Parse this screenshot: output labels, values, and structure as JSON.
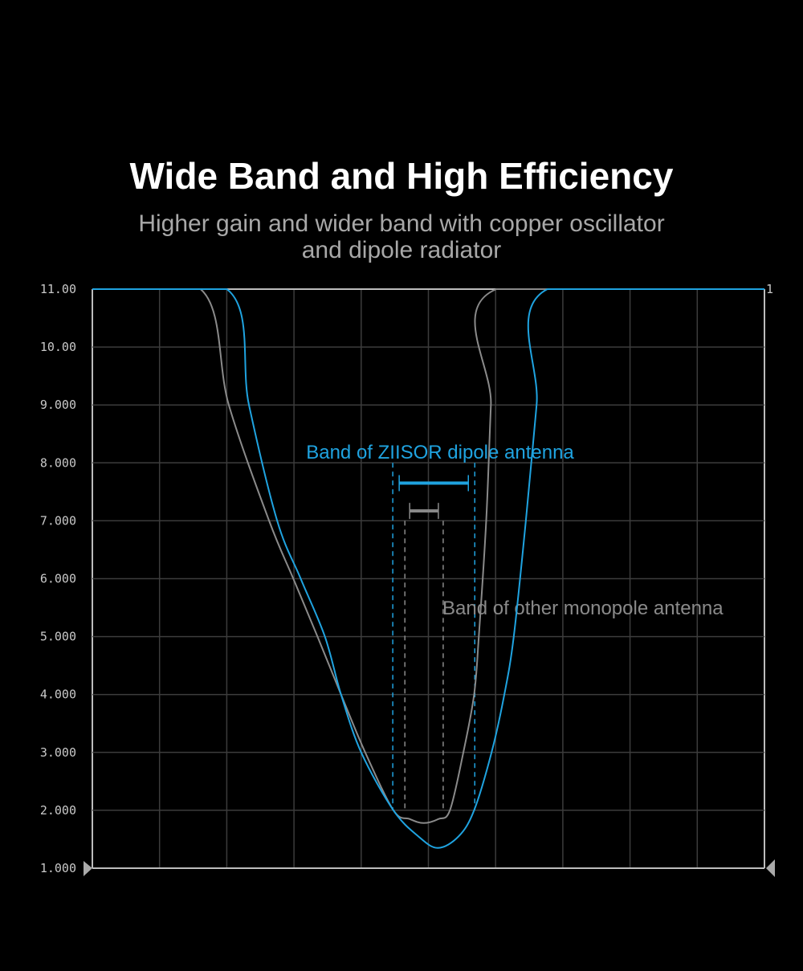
{
  "header": {
    "title": "Wide Band and High Efficiency",
    "subtitle_line1": "Higher gain and wider band with copper oscillator",
    "subtitle_line2": "and dipole radiator"
  },
  "chart_data": {
    "type": "line",
    "title": "",
    "xlabel": "",
    "ylabel": "",
    "ylim": [
      1,
      11
    ],
    "xlim": [
      0,
      10
    ],
    "x_gridlines": 10,
    "y_tick_labels": [
      "11.00",
      "10.00",
      "9.000",
      "8.000",
      "7.000",
      "6.000",
      "5.000",
      "4.000",
      "3.000",
      "2.000",
      "1.000"
    ],
    "corner_label": "1",
    "grid": true,
    "colors": {
      "dipole": "#1fa3e0",
      "monopole": "#8a8a8a",
      "grid": "#3c3c3c",
      "axis": "#bdbdbd"
    },
    "series": [
      {
        "key": "dipole",
        "color": "#1fa3e0",
        "x": [
          0,
          2.0,
          2.33,
          2.75,
          3.1,
          3.46,
          3.7,
          4.0,
          4.48,
          4.85,
          5.14,
          5.45,
          5.68,
          5.94,
          6.13,
          6.27,
          6.45,
          6.61,
          6.77,
          10
        ],
        "y": [
          11,
          11,
          9.0,
          7.0,
          6.0,
          5.0,
          4.0,
          3.0,
          2.0,
          1.55,
          1.35,
          1.55,
          2.0,
          3.0,
          4.0,
          5.0,
          7.0,
          9.0,
          11,
          11
        ]
      },
      {
        "key": "monopole",
        "color": "#8a8a8a",
        "x": [
          0,
          1.61,
          2.03,
          2.63,
          2.99,
          3.35,
          3.7,
          4.06,
          4.48,
          4.72,
          4.93,
          5.15,
          5.32,
          5.52,
          5.68,
          5.75,
          5.86,
          5.93,
          6.01,
          10
        ],
        "y": [
          11,
          11,
          9.0,
          7.0,
          6.0,
          5.0,
          4.0,
          3.0,
          2.0,
          1.85,
          1.78,
          1.85,
          2.0,
          3.0,
          4.0,
          5.0,
          7.0,
          9.0,
          11,
          11
        ]
      }
    ],
    "annotations": [
      {
        "key": "dipole",
        "text": "Band of ZIISOR dipole antenna",
        "color": "#1fa3e0",
        "band": [
          4.47,
          5.69
        ],
        "bar_y": 7.65,
        "dash_top": 8.0,
        "dash_bottom": 2.0
      },
      {
        "key": "monopole",
        "text": "Band of other monopole antenna",
        "color": "#8a8a8a",
        "band": [
          4.65,
          5.22
        ],
        "bar_y": 7.17,
        "dash_top": 7.0,
        "dash_bottom": 2.0
      }
    ]
  }
}
